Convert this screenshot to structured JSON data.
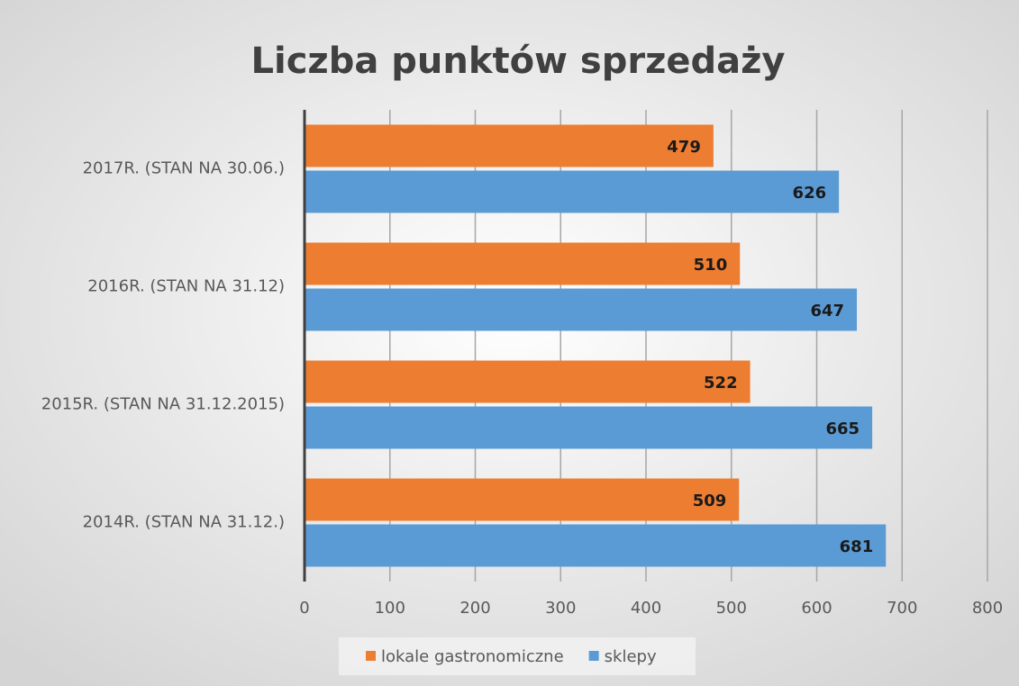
{
  "chart_data": {
    "type": "bar",
    "orientation": "horizontal",
    "title": "Liczba punktów sprzedaży",
    "categories": [
      "2017R. (STAN NA 30.06.)",
      "2016R. (STAN NA 31.12)",
      "2015R. (STAN NA 31.12.2015)",
      "2014R. (STAN NA 31.12.)"
    ],
    "series": [
      {
        "name": "lokale gastronomiczne",
        "color": "#ed7d31",
        "values": [
          479,
          510,
          522,
          509
        ]
      },
      {
        "name": "sklepy",
        "color": "#5b9bd5",
        "values": [
          626,
          647,
          665,
          681
        ]
      }
    ],
    "xlim": [
      0,
      800
    ],
    "xticks": [
      0,
      100,
      200,
      300,
      400,
      500,
      600,
      700,
      800
    ],
    "grid": true,
    "legend": "bottom"
  }
}
